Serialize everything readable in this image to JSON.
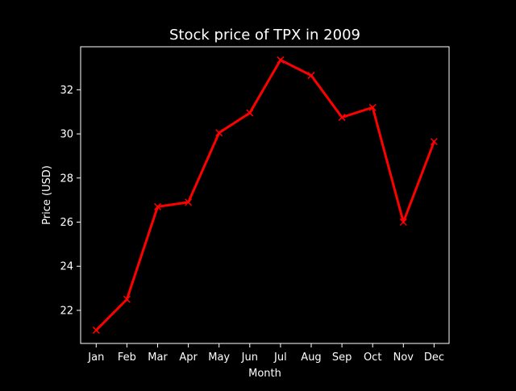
{
  "chart_data": {
    "type": "line",
    "title": "Stock price of TPX in 2009",
    "xlabel": "Month",
    "ylabel": "Price (USD)",
    "categories": [
      "Jan",
      "Feb",
      "Mar",
      "Apr",
      "May",
      "Jun",
      "Jul",
      "Aug",
      "Sep",
      "Oct",
      "Nov",
      "Dec"
    ],
    "series": [
      {
        "values": [
          21.1,
          22.5,
          26.7,
          26.9,
          30.05,
          30.95,
          33.35,
          32.65,
          30.75,
          31.2,
          26.0,
          29.65
        ],
        "color": "#ff0000",
        "marker": "x"
      }
    ],
    "ylim": [
      20.5,
      33.95
    ],
    "yticks": [
      22,
      24,
      26,
      28,
      30,
      32
    ],
    "grid": false,
    "legend": "none",
    "colors": {
      "background": "#000000",
      "foreground": "#ffffff",
      "line": "#ff0000"
    }
  }
}
